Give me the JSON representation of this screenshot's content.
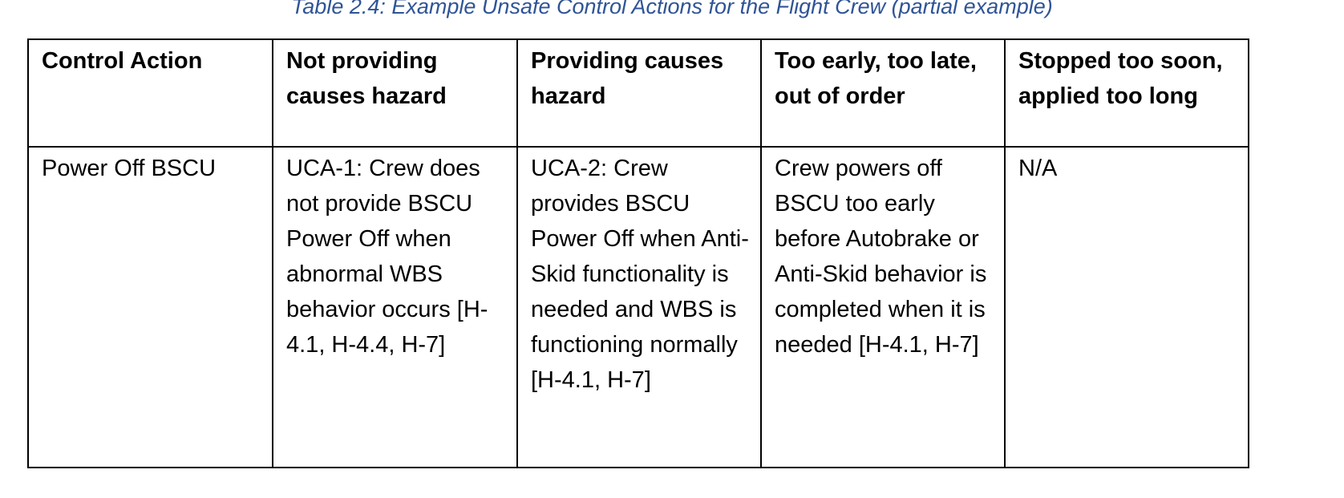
{
  "caption": "Table 2.4: Example Unsafe Control Actions for the Flight Crew (partial example)",
  "table": {
    "headers": [
      "Control Action",
      "Not providing causes hazard",
      "Providing causes hazard",
      "Too early, too late, out of order",
      "Stopped too soon, applied too long"
    ],
    "rows": [
      [
        "Power Off BSCU",
        "UCA-1: Crew does not provide BSCU Power Off when abnormal WBS behavior occurs [H-4.1, H-4.4, H-7]",
        "UCA-2: Crew provides BSCU Power Off when Anti-Skid functionality is needed and WBS is functioning normally [H-4.1, H-7]",
        "Crew powers off BSCU too early before Autobrake or Anti-Skid behavior is completed when it is needed [H-4.1, H-7]",
        "N/A"
      ]
    ]
  },
  "colors": {
    "caption": "#2f5496",
    "text": "#000000",
    "border": "#000000",
    "background": "#ffffff"
  }
}
